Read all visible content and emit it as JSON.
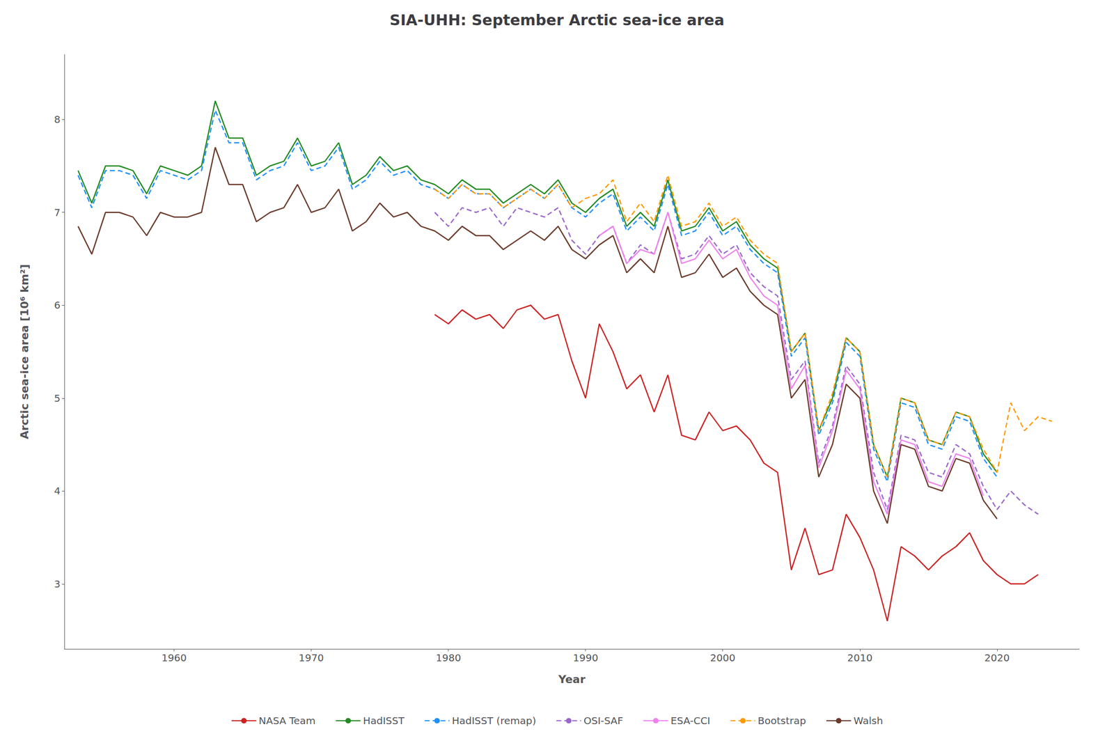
{
  "chart_data": {
    "type": "line",
    "title": "SIA-UHH: September Arctic sea-ice area",
    "xlabel": "Year",
    "ylabel": "Arctic sea-ice area [10⁶ km²]",
    "xlim": [
      1952,
      2026
    ],
    "ylim": [
      2.3,
      8.7
    ],
    "xticks": [
      1960,
      1970,
      1980,
      1990,
      2000,
      2010,
      2020
    ],
    "yticks": [
      3,
      4,
      5,
      6,
      7,
      8
    ],
    "grid": false,
    "legend": "bottom",
    "series": [
      {
        "name": "NASA Team",
        "color": "#cc2222",
        "line_style": "solid",
        "x": [
          1979,
          1980,
          1981,
          1982,
          1983,
          1984,
          1985,
          1986,
          1987,
          1988,
          1989,
          1990,
          1991,
          1992,
          1993,
          1994,
          1995,
          1996,
          1997,
          1998,
          1999,
          2000,
          2001,
          2002,
          2003,
          2004,
          2005,
          2006,
          2007,
          2008,
          2009,
          2010,
          2011,
          2012,
          2013,
          2014,
          2015,
          2016,
          2017,
          2018,
          2019,
          2020,
          2021,
          2022,
          2023
        ],
        "values": [
          5.9,
          5.8,
          5.95,
          5.85,
          5.9,
          5.75,
          5.95,
          6.0,
          5.85,
          5.9,
          5.4,
          5.0,
          5.8,
          5.5,
          5.1,
          5.25,
          4.85,
          5.25,
          4.6,
          4.55,
          4.85,
          4.65,
          4.7,
          4.55,
          4.3,
          4.2,
          3.15,
          3.6,
          3.1,
          3.15,
          3.75,
          3.5,
          3.15,
          2.6,
          3.4,
          3.3,
          3.15,
          3.3,
          3.4,
          3.55,
          3.25,
          3.1,
          3.0,
          3.0,
          3.1
        ]
      },
      {
        "name": "HadISST",
        "color": "#228B22",
        "line_style": "solid",
        "x": [
          1953,
          1954,
          1955,
          1956,
          1957,
          1958,
          1959,
          1960,
          1961,
          1962,
          1963,
          1964,
          1965,
          1966,
          1967,
          1968,
          1969,
          1970,
          1971,
          1972,
          1973,
          1974,
          1975,
          1976,
          1977,
          1978,
          1979,
          1980,
          1981,
          1982,
          1983,
          1984,
          1985,
          1986,
          1987,
          1988,
          1989,
          1990,
          1991,
          1992,
          1993,
          1994,
          1995,
          1996,
          1997,
          1998,
          1999,
          2000,
          2001,
          2002,
          2003,
          2004,
          2005,
          2006,
          2007,
          2008,
          2009,
          2010,
          2011,
          2012,
          2013,
          2014,
          2015,
          2016,
          2017,
          2018,
          2019,
          2020
        ],
        "values": [
          7.45,
          7.1,
          7.5,
          7.5,
          7.45,
          7.2,
          7.5,
          7.45,
          7.4,
          7.5,
          8.2,
          7.8,
          7.8,
          7.4,
          7.5,
          7.55,
          7.8,
          7.5,
          7.55,
          7.75,
          7.3,
          7.4,
          7.6,
          7.45,
          7.5,
          7.35,
          7.3,
          7.2,
          7.35,
          7.25,
          7.25,
          7.1,
          7.2,
          7.3,
          7.2,
          7.35,
          7.1,
          7.0,
          7.15,
          7.25,
          6.85,
          7.0,
          6.85,
          7.35,
          6.8,
          6.85,
          7.05,
          6.8,
          6.9,
          6.65,
          6.5,
          6.4,
          5.5,
          5.7,
          4.65,
          5.0,
          5.65,
          5.5,
          4.5,
          4.15,
          5.0,
          4.95,
          4.55,
          4.5,
          4.85,
          4.8,
          4.4,
          4.2
        ]
      },
      {
        "name": "HadISST (remap)",
        "color": "#1e90ff",
        "line_style": "dashed",
        "x": [
          1953,
          1954,
          1955,
          1956,
          1957,
          1958,
          1959,
          1960,
          1961,
          1962,
          1963,
          1964,
          1965,
          1966,
          1967,
          1968,
          1969,
          1970,
          1971,
          1972,
          1973,
          1974,
          1975,
          1976,
          1977,
          1978,
          1979,
          1980,
          1981,
          1982,
          1983,
          1984,
          1985,
          1986,
          1987,
          1988,
          1989,
          1990,
          1991,
          1992,
          1993,
          1994,
          1995,
          1996,
          1997,
          1998,
          1999,
          2000,
          2001,
          2002,
          2003,
          2004,
          2005,
          2006,
          2007,
          2008,
          2009,
          2010,
          2011,
          2012,
          2013,
          2014,
          2015,
          2016,
          2017,
          2018,
          2019,
          2020
        ],
        "values": [
          7.4,
          7.05,
          7.45,
          7.45,
          7.4,
          7.15,
          7.45,
          7.4,
          7.35,
          7.45,
          8.1,
          7.75,
          7.75,
          7.35,
          7.45,
          7.5,
          7.75,
          7.45,
          7.5,
          7.7,
          7.25,
          7.35,
          7.55,
          7.4,
          7.45,
          7.3,
          7.25,
          7.15,
          7.3,
          7.2,
          7.2,
          7.05,
          7.15,
          7.25,
          7.15,
          7.3,
          7.05,
          6.95,
          7.1,
          7.2,
          6.8,
          6.95,
          6.8,
          7.3,
          6.75,
          6.8,
          7.0,
          6.75,
          6.85,
          6.6,
          6.45,
          6.35,
          5.45,
          5.65,
          4.6,
          4.95,
          5.6,
          5.45,
          4.45,
          4.1,
          4.95,
          4.9,
          4.5,
          4.45,
          4.8,
          4.75,
          4.35,
          4.15
        ]
      },
      {
        "name": "OSI-SAF",
        "color": "#9966cc",
        "line_style": "dashed",
        "x": [
          1979,
          1980,
          1981,
          1982,
          1983,
          1984,
          1985,
          1986,
          1987,
          1988,
          1989,
          1990,
          1991,
          1992,
          1993,
          1994,
          1995,
          1996,
          1997,
          1998,
          1999,
          2000,
          2001,
          2002,
          2003,
          2004,
          2005,
          2006,
          2007,
          2008,
          2009,
          2010,
          2011,
          2012,
          2013,
          2014,
          2015,
          2016,
          2017,
          2018,
          2019,
          2020,
          2021,
          2022,
          2023
        ],
        "values": [
          7.0,
          6.85,
          7.05,
          7.0,
          7.05,
          6.85,
          7.05,
          7.0,
          6.95,
          7.05,
          6.7,
          6.55,
          6.75,
          6.85,
          6.45,
          6.65,
          6.55,
          7.0,
          6.5,
          6.55,
          6.75,
          6.55,
          6.65,
          6.35,
          6.2,
          6.1,
          5.2,
          5.4,
          4.3,
          4.7,
          5.35,
          5.15,
          4.2,
          3.8,
          4.6,
          4.55,
          4.2,
          4.15,
          4.5,
          4.4,
          4.05,
          3.8,
          4.0,
          3.85,
          3.75
        ]
      },
      {
        "name": "ESA-CCI",
        "color": "#ee82ee",
        "line_style": "solid",
        "x": [
          1991,
          1992,
          1993,
          1994,
          1995,
          1996,
          1997,
          1998,
          1999,
          2000,
          2001,
          2002,
          2003,
          2004,
          2005,
          2006,
          2007,
          2008,
          2009,
          2010,
          2011,
          2012,
          2013,
          2014,
          2015,
          2016,
          2017,
          2018,
          2019
        ],
        "values": [
          6.75,
          6.85,
          6.45,
          6.6,
          6.55,
          7.0,
          6.45,
          6.5,
          6.7,
          6.5,
          6.6,
          6.3,
          6.1,
          6.0,
          5.1,
          5.35,
          4.25,
          4.65,
          5.3,
          5.1,
          4.1,
          3.75,
          4.55,
          4.5,
          4.1,
          4.05,
          4.4,
          4.35,
          3.95
        ]
      },
      {
        "name": "Bootstrap",
        "color": "#ff9900",
        "line_style": "dashed",
        "x": [
          1979,
          1980,
          1981,
          1982,
          1983,
          1984,
          1985,
          1986,
          1987,
          1988,
          1989,
          1990,
          1991,
          1992,
          1993,
          1994,
          1995,
          1996,
          1997,
          1998,
          1999,
          2000,
          2001,
          2002,
          2003,
          2004,
          2005,
          2006,
          2007,
          2008,
          2009,
          2010,
          2011,
          2012,
          2013,
          2014,
          2015,
          2016,
          2017,
          2018,
          2019,
          2020,
          2021,
          2022,
          2023,
          2024
        ],
        "values": [
          7.25,
          7.15,
          7.3,
          7.2,
          7.2,
          7.05,
          7.15,
          7.25,
          7.15,
          7.3,
          7.05,
          7.15,
          7.2,
          7.35,
          6.9,
          7.1,
          6.9,
          7.4,
          6.85,
          6.9,
          7.1,
          6.85,
          6.95,
          6.7,
          6.55,
          6.45,
          5.5,
          5.7,
          4.65,
          5.05,
          5.65,
          5.5,
          4.5,
          4.15,
          5.0,
          4.95,
          4.55,
          4.5,
          4.85,
          4.8,
          4.45,
          4.2,
          4.95,
          4.65,
          4.8,
          4.75
        ]
      },
      {
        "name": "Walsh",
        "color": "#6B3A2A",
        "line_style": "solid",
        "x": [
          1953,
          1954,
          1955,
          1956,
          1957,
          1958,
          1959,
          1960,
          1961,
          1962,
          1963,
          1964,
          1965,
          1966,
          1967,
          1968,
          1969,
          1970,
          1971,
          1972,
          1973,
          1974,
          1975,
          1976,
          1977,
          1978,
          1979,
          1980,
          1981,
          1982,
          1983,
          1984,
          1985,
          1986,
          1987,
          1988,
          1989,
          1990,
          1991,
          1992,
          1993,
          1994,
          1995,
          1996,
          1997,
          1998,
          1999,
          2000,
          2001,
          2002,
          2003,
          2004,
          2005,
          2006,
          2007,
          2008,
          2009,
          2010,
          2011,
          2012,
          2013,
          2014,
          2015,
          2016,
          2017,
          2018,
          2019,
          2020
        ],
        "values": [
          6.85,
          6.55,
          7.0,
          7.0,
          6.95,
          6.75,
          7.0,
          6.95,
          6.95,
          7.0,
          7.7,
          7.3,
          7.3,
          6.9,
          7.0,
          7.05,
          7.3,
          7.0,
          7.05,
          7.25,
          6.8,
          6.9,
          7.1,
          6.95,
          7.0,
          6.85,
          6.8,
          6.7,
          6.85,
          6.75,
          6.75,
          6.6,
          6.7,
          6.8,
          6.7,
          6.85,
          6.6,
          6.5,
          6.65,
          6.75,
          6.35,
          6.5,
          6.35,
          6.85,
          6.3,
          6.35,
          6.55,
          6.3,
          6.4,
          6.15,
          6.0,
          5.9,
          5.0,
          5.2,
          4.15,
          4.5,
          5.15,
          5.0,
          4.0,
          3.65,
          4.5,
          4.45,
          4.05,
          4.0,
          4.35,
          4.3,
          3.9,
          3.7
        ]
      }
    ]
  }
}
